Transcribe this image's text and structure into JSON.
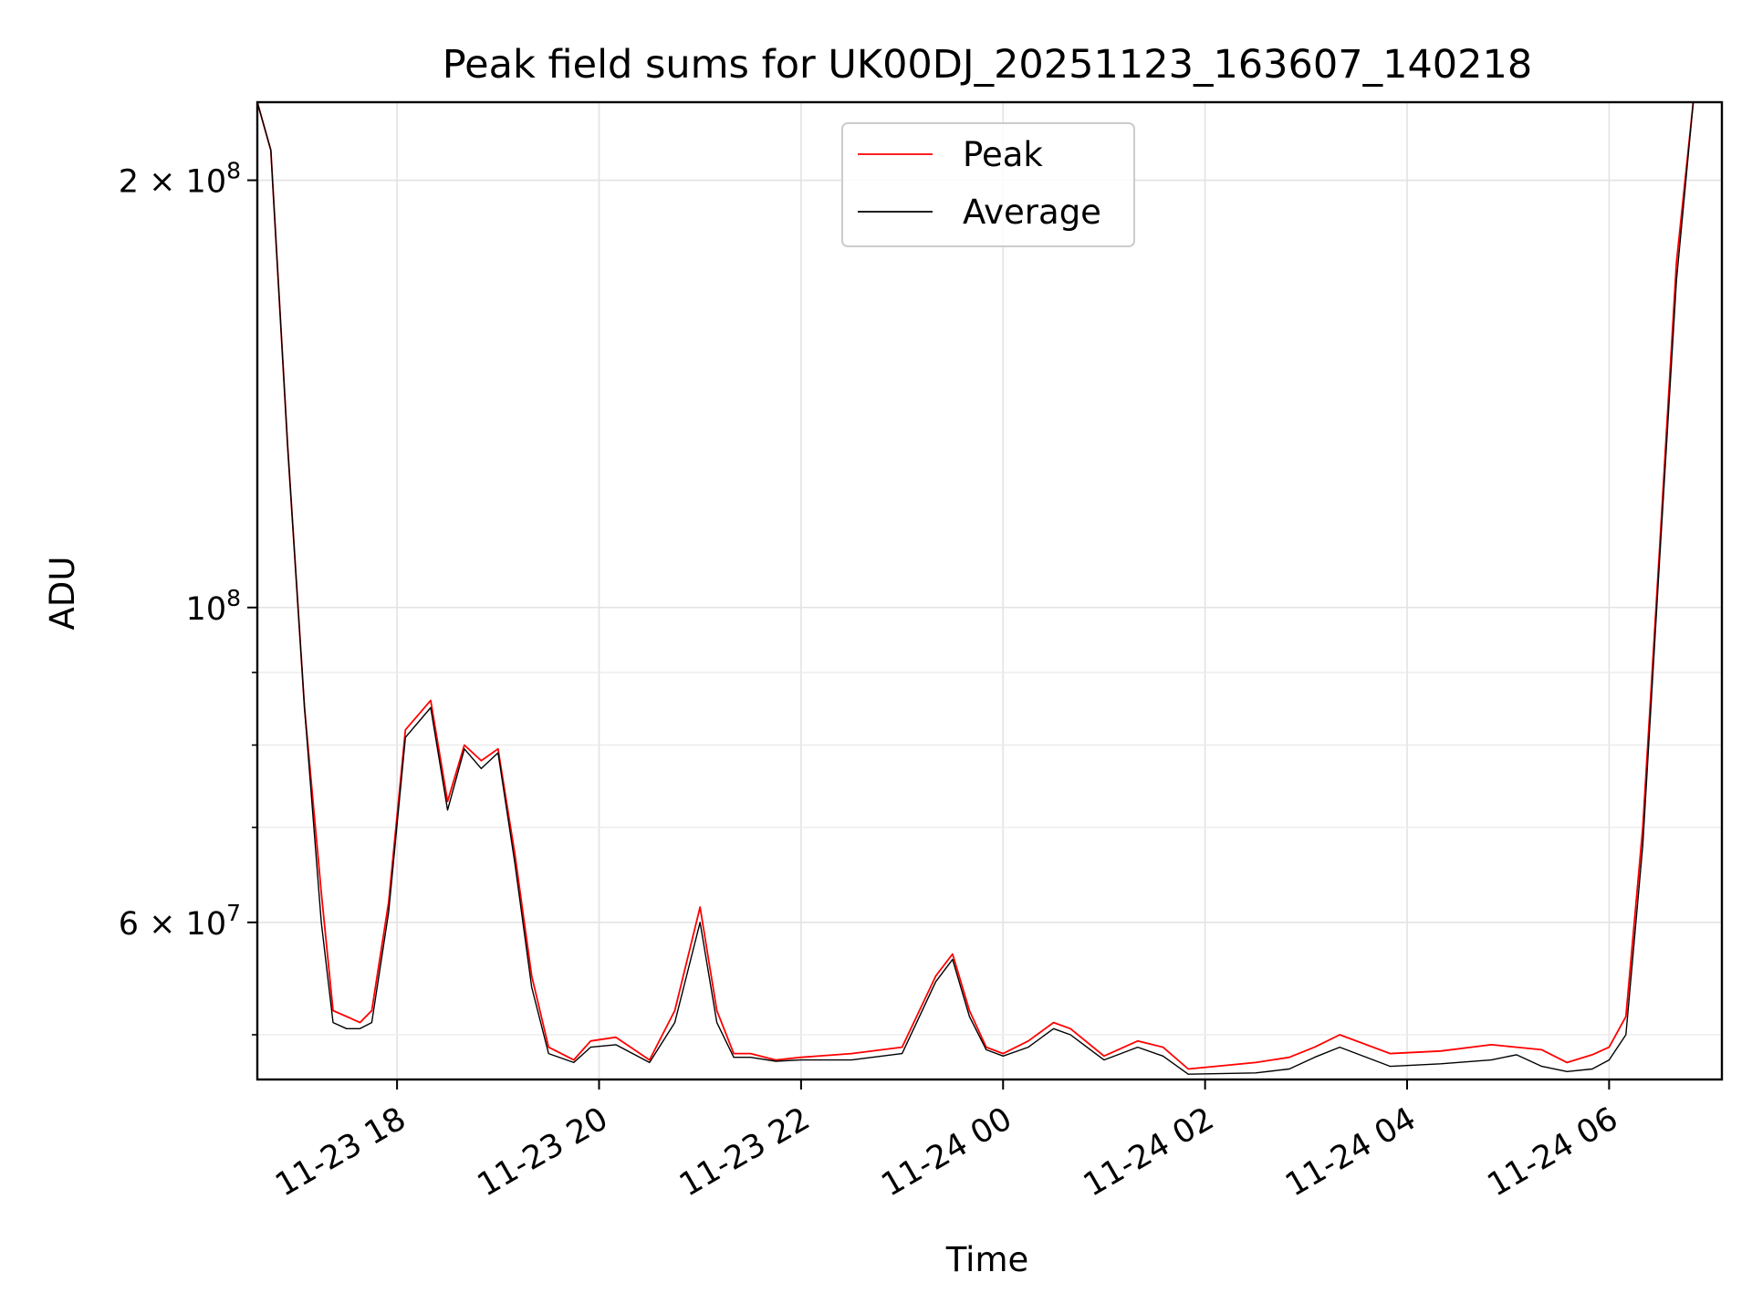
{
  "chart_data": {
    "type": "line",
    "title": "Peak field sums for UK00DJ_20251123_163607_140218",
    "xlabel": "Time",
    "ylabel": "ADU",
    "yscale": "log",
    "xlim": [
      "2025-11-23 16:37",
      "2025-11-24 07:07"
    ],
    "ylim": [
      46500000,
      227000000
    ],
    "grid": true,
    "legend_position": "top-center",
    "x_ticks": [
      {
        "value": "2025-11-23 18:00",
        "label": "11-23 18"
      },
      {
        "value": "2025-11-23 20:00",
        "label": "11-23 20"
      },
      {
        "value": "2025-11-23 22:00",
        "label": "11-23 22"
      },
      {
        "value": "2025-11-24 00:00",
        "label": "11-24 00"
      },
      {
        "value": "2025-11-24 02:00",
        "label": "11-24 02"
      },
      {
        "value": "2025-11-24 04:00",
        "label": "11-24 04"
      },
      {
        "value": "2025-11-24 06:00",
        "label": "11-24 06"
      }
    ],
    "y_ticks": [
      {
        "value": 60000000,
        "label": "6 × 10",
        "exp": "7"
      },
      {
        "value": 100000000,
        "label": "10",
        "exp": "8"
      },
      {
        "value": 200000000,
        "label": "2 × 10",
        "exp": "8"
      }
    ],
    "y_minor_ticks": [
      50000000,
      70000000,
      80000000,
      90000000
    ],
    "series": [
      {
        "name": "Peak",
        "color": "#ff0000",
        "x": [
          "2025-11-23 16:37",
          "2025-11-23 16:45",
          "2025-11-23 16:55",
          "2025-11-23 17:05",
          "2025-11-23 17:15",
          "2025-11-23 17:22",
          "2025-11-23 17:30",
          "2025-11-23 17:38",
          "2025-11-23 17:45",
          "2025-11-23 17:55",
          "2025-11-23 18:05",
          "2025-11-23 18:20",
          "2025-11-23 18:30",
          "2025-11-23 18:40",
          "2025-11-23 18:50",
          "2025-11-23 19:00",
          "2025-11-23 19:10",
          "2025-11-23 19:20",
          "2025-11-23 19:30",
          "2025-11-23 19:45",
          "2025-11-23 19:55",
          "2025-11-23 20:10",
          "2025-11-23 20:30",
          "2025-11-23 20:45",
          "2025-11-23 21:00",
          "2025-11-23 21:10",
          "2025-11-23 21:20",
          "2025-11-23 21:30",
          "2025-11-23 21:45",
          "2025-11-23 22:00",
          "2025-11-23 22:30",
          "2025-11-23 23:00",
          "2025-11-23 23:20",
          "2025-11-23 23:30",
          "2025-11-23 23:40",
          "2025-11-23 23:50",
          "2025-11-24 00:00",
          "2025-11-24 00:15",
          "2025-11-24 00:30",
          "2025-11-24 00:40",
          "2025-11-24 01:00",
          "2025-11-24 01:20",
          "2025-11-24 01:35",
          "2025-11-24 01:50",
          "2025-11-24 02:30",
          "2025-11-24 02:50",
          "2025-11-24 03:05",
          "2025-11-24 03:20",
          "2025-11-24 03:50",
          "2025-11-24 04:20",
          "2025-11-24 04:50",
          "2025-11-24 05:05",
          "2025-11-24 05:20",
          "2025-11-24 05:35",
          "2025-11-24 05:50",
          "2025-11-24 06:00",
          "2025-11-24 06:10",
          "2025-11-24 06:20",
          "2025-11-24 06:30",
          "2025-11-24 06:40",
          "2025-11-24 06:50",
          "2025-11-24 07:00",
          "2025-11-24 07:07"
        ],
        "y": [
          227000000,
          210000000,
          130000000,
          85000000,
          63000000,
          52000000,
          51500000,
          51000000,
          52000000,
          62000000,
          82000000,
          86000000,
          73000000,
          80000000,
          78000000,
          79500000,
          67000000,
          55000000,
          49000000,
          48000000,
          49500000,
          49800000,
          48000000,
          52000000,
          61500000,
          52000000,
          48500000,
          48500000,
          48000000,
          48200000,
          48500000,
          49000000,
          55000000,
          57000000,
          52000000,
          49000000,
          48500000,
          49500000,
          51000000,
          50500000,
          48300000,
          49500000,
          49000000,
          47300000,
          47800000,
          48200000,
          49000000,
          50000000,
          48500000,
          48700000,
          49200000,
          49000000,
          48800000,
          47800000,
          48400000,
          49000000,
          51500000,
          70000000,
          110000000,
          175000000,
          227000000,
          227000000,
          227000000
        ]
      },
      {
        "name": "Average",
        "color": "#000000",
        "x": [
          "2025-11-23 16:37",
          "2025-11-23 16:45",
          "2025-11-23 16:55",
          "2025-11-23 17:05",
          "2025-11-23 17:15",
          "2025-11-23 17:22",
          "2025-11-23 17:30",
          "2025-11-23 17:38",
          "2025-11-23 17:45",
          "2025-11-23 17:55",
          "2025-11-23 18:05",
          "2025-11-23 18:20",
          "2025-11-23 18:30",
          "2025-11-23 18:40",
          "2025-11-23 18:50",
          "2025-11-23 19:00",
          "2025-11-23 19:10",
          "2025-11-23 19:20",
          "2025-11-23 19:30",
          "2025-11-23 19:45",
          "2025-11-23 19:55",
          "2025-11-23 20:10",
          "2025-11-23 20:30",
          "2025-11-23 20:45",
          "2025-11-23 21:00",
          "2025-11-23 21:10",
          "2025-11-23 21:20",
          "2025-11-23 21:30",
          "2025-11-23 21:45",
          "2025-11-23 22:00",
          "2025-11-23 22:30",
          "2025-11-23 23:00",
          "2025-11-23 23:20",
          "2025-11-23 23:30",
          "2025-11-23 23:40",
          "2025-11-23 23:50",
          "2025-11-24 00:00",
          "2025-11-24 00:15",
          "2025-11-24 00:30",
          "2025-11-24 00:40",
          "2025-11-24 01:00",
          "2025-11-24 01:20",
          "2025-11-24 01:35",
          "2025-11-24 01:50",
          "2025-11-24 02:30",
          "2025-11-24 02:50",
          "2025-11-24 03:05",
          "2025-11-24 03:20",
          "2025-11-24 03:50",
          "2025-11-24 04:20",
          "2025-11-24 04:50",
          "2025-11-24 05:05",
          "2025-11-24 05:20",
          "2025-11-24 05:35",
          "2025-11-24 05:50",
          "2025-11-24 06:00",
          "2025-11-24 06:10",
          "2025-11-24 06:20",
          "2025-11-24 06:30",
          "2025-11-24 06:40",
          "2025-11-24 06:50",
          "2025-11-24 07:00",
          "2025-11-24 07:07"
        ],
        "y": [
          227000000,
          210000000,
          130000000,
          85000000,
          60000000,
          51000000,
          50500000,
          50500000,
          51000000,
          61000000,
          81000000,
          85000000,
          72000000,
          79500000,
          77000000,
          79000000,
          66000000,
          54000000,
          48500000,
          47800000,
          49000000,
          49200000,
          47800000,
          51000000,
          60000000,
          51000000,
          48200000,
          48200000,
          47900000,
          48000000,
          48000000,
          48500000,
          54500000,
          56500000,
          51500000,
          48800000,
          48300000,
          49000000,
          50500000,
          50000000,
          48000000,
          49000000,
          48300000,
          46900000,
          47000000,
          47300000,
          48200000,
          49000000,
          47500000,
          47700000,
          48000000,
          48400000,
          47500000,
          47100000,
          47300000,
          48000000,
          50000000,
          68000000,
          108000000,
          170000000,
          227000000,
          227000000,
          227000000
        ]
      }
    ]
  }
}
